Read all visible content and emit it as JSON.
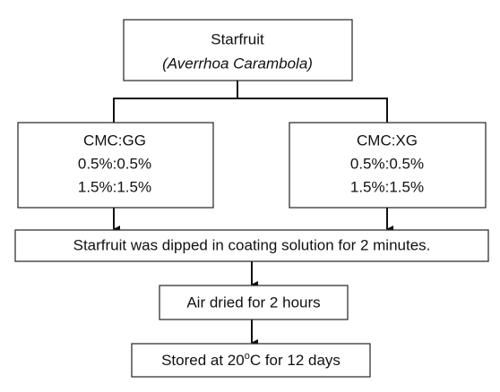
{
  "nodes": [
    {
      "lines": [
        "Starfruit",
        "(Averrhoa Carambola)"
      ]
    },
    {
      "lines": [
        "CMC:GG",
        "0.5%:0.5%",
        "1.5%:1.5%"
      ]
    },
    {
      "lines": [
        "CMC:XG",
        "0.5%:0.5%",
        "1.5%:1.5%"
      ]
    },
    {
      "lines": [
        "Starfruit was dipped in coating solution for 2 minutes."
      ]
    },
    {
      "lines": [
        "Air dried for 2 hours"
      ]
    },
    {
      "parts": [
        "Stored at 20",
        "o",
        "C for 12 days"
      ]
    }
  ]
}
